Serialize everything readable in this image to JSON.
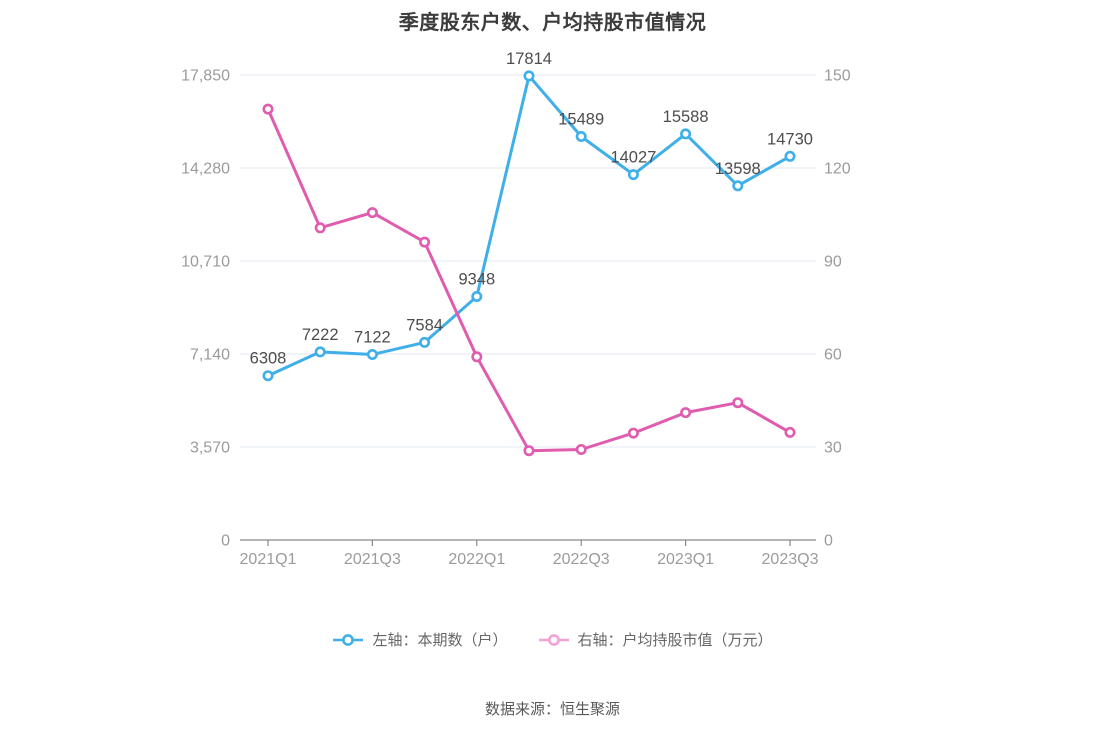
{
  "title": "季度股东户数、户均持股市值情况",
  "source": "数据来源：恒生聚源",
  "legend": [
    {
      "label": "左轴：本期数（户）",
      "color": "#3fafe9"
    },
    {
      "label": "右轴：户均持股市值（万元）",
      "color": "#f2a2d4"
    }
  ],
  "chart_data": {
    "type": "line",
    "categories": [
      "2021Q1",
      "2021Q2",
      "2021Q3",
      "2021Q4",
      "2022Q1",
      "2022Q2",
      "2022Q3",
      "2022Q4",
      "2023Q1",
      "2023Q2",
      "2023Q3"
    ],
    "x_axis_labels_shown": [
      "2021Q1",
      "2021Q3",
      "2022Q1",
      "2022Q3",
      "2023Q1",
      "2023Q3"
    ],
    "series": [
      {
        "name": "左轴：本期数（户）",
        "axis": "left",
        "color": "#3fafe9",
        "show_data_labels": true,
        "values": [
          6308,
          7222,
          7122,
          7584,
          9348,
          17814,
          15489,
          14027,
          15588,
          13598,
          14730
        ]
      },
      {
        "name": "右轴：户均持股市值（万元）",
        "axis": "right",
        "color": "#df5cae",
        "show_data_labels": false,
        "values": [
          139.0,
          100.7,
          105.6,
          96.1,
          59.1,
          28.8,
          29.2,
          34.5,
          41.1,
          44.3,
          34.7
        ]
      }
    ],
    "left_axis": {
      "title": "",
      "max": 17850,
      "tick_labels": [
        "0",
        "3,570",
        "7,140",
        "10,710",
        "14,280",
        "17,850"
      ]
    },
    "right_axis": {
      "title": "",
      "max": 150,
      "tick_labels": [
        "0",
        "30",
        "60",
        "90",
        "120",
        "150"
      ]
    },
    "grid": true,
    "legend_position": "bottom"
  },
  "style_colors": {
    "axis_label": "#9b9b9b",
    "data_label": "#4d4d4d",
    "gridline": "#e8eef4",
    "axis_line": "#888888",
    "marker_fill": "#ffffff"
  }
}
